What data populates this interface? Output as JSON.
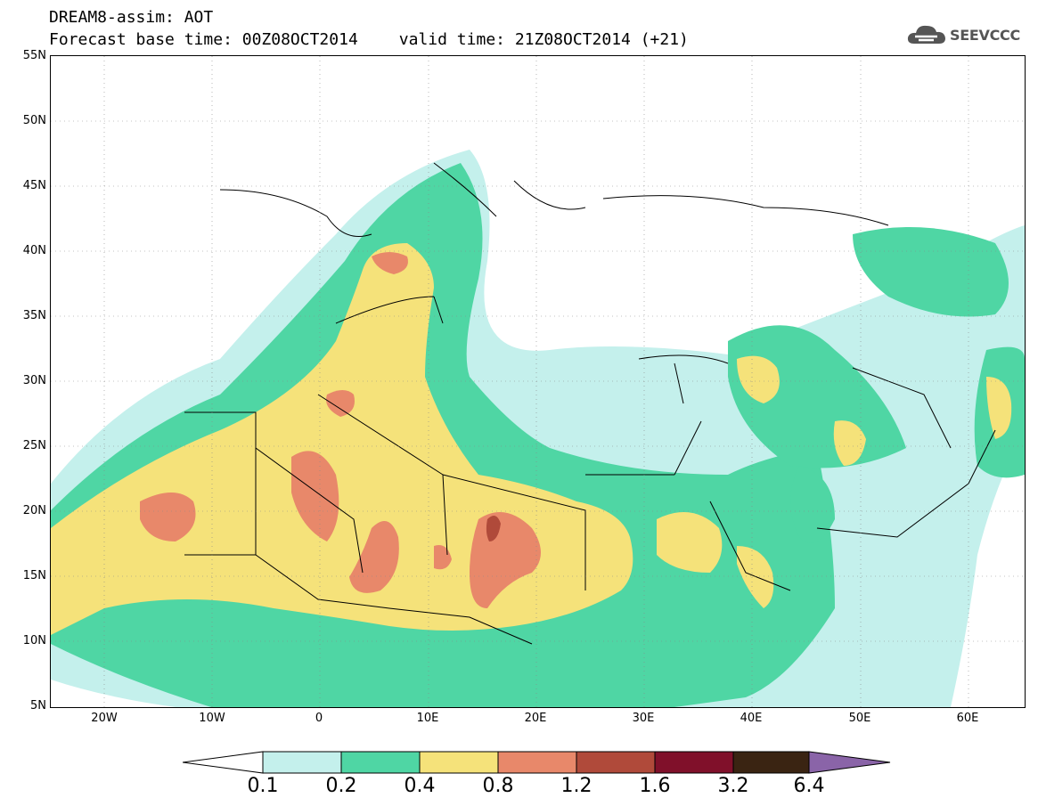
{
  "title": {
    "line1": "DREAM8-assim: AOT",
    "base_time": "Forecast base time: 00Z08OCT2014",
    "valid_time": "valid time: 21Z08OCT2014 (+21)"
  },
  "logo": {
    "text": "SEEVCCC",
    "icon": "cloud-icon"
  },
  "map": {
    "lat_labels": [
      "55N",
      "50N",
      "45N",
      "40N",
      "35N",
      "30N",
      "25N",
      "20N",
      "15N",
      "10N",
      "5N"
    ],
    "lon_labels": [
      "20W",
      "10W",
      "0",
      "10E",
      "20E",
      "30E",
      "40E",
      "50E",
      "60E"
    ]
  },
  "colorbar": {
    "levels": [
      "0.1",
      "0.2",
      "0.4",
      "0.8",
      "1.2",
      "1.6",
      "3.2",
      "6.4"
    ],
    "colors": [
      "#ffffff",
      "#c4f0ec",
      "#4fd6a4",
      "#f5e27a",
      "#e8886a",
      "#b04a3a",
      "#80102a",
      "#3a2412",
      "#8a64a8"
    ]
  }
}
